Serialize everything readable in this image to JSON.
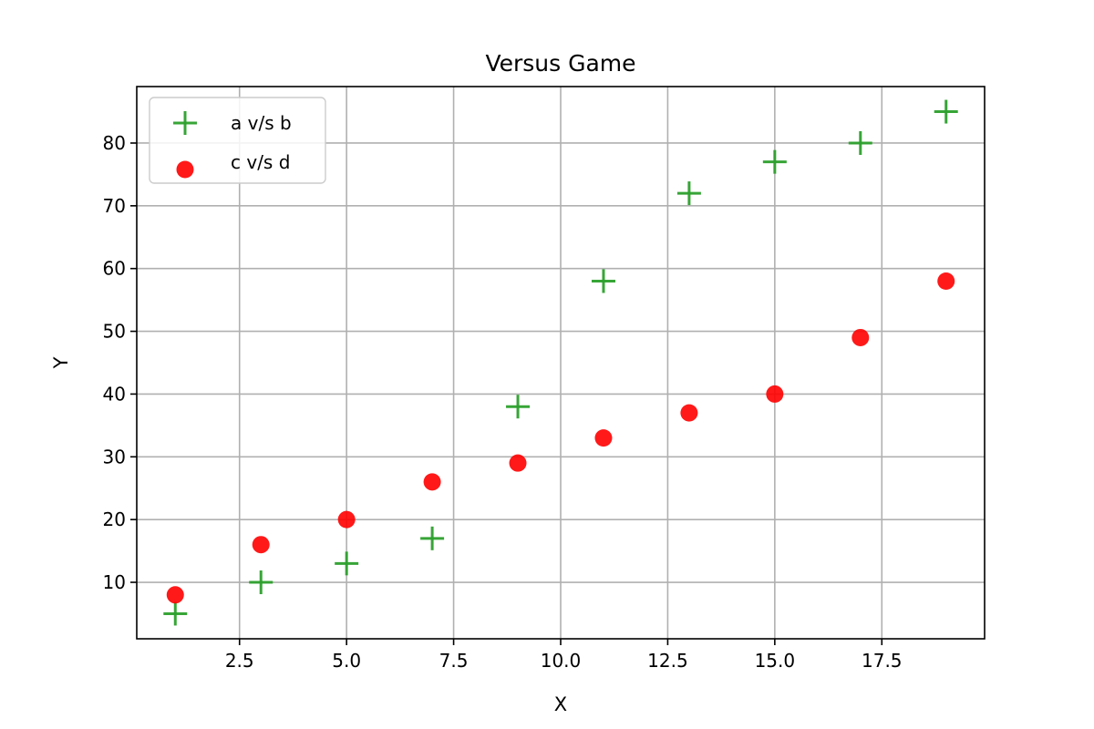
{
  "chart_data": {
    "type": "scatter",
    "title": "Versus Game",
    "xlabel": "X",
    "ylabel": "Y",
    "xlim": [
      0.1,
      19.9
    ],
    "ylim": [
      1,
      89
    ],
    "xticks": [
      2.5,
      5.0,
      7.5,
      10.0,
      12.5,
      15.0,
      17.5
    ],
    "xtick_labels": [
      "2.5",
      "5.0",
      "7.5",
      "10.0",
      "12.5",
      "15.0",
      "17.5"
    ],
    "yticks": [
      10,
      20,
      30,
      40,
      50,
      60,
      70,
      80
    ],
    "ytick_labels": [
      "10",
      "20",
      "30",
      "40",
      "50",
      "60",
      "70",
      "80"
    ],
    "grid": true,
    "legend": "top-left",
    "series": [
      {
        "name": "a v/s b",
        "marker": "plus",
        "color": "#2ca02c",
        "x": [
          1,
          3,
          5,
          7,
          9,
          11,
          13,
          15,
          17,
          19
        ],
        "y": [
          5,
          10,
          13,
          17,
          38,
          58,
          72,
          77,
          80,
          85
        ]
      },
      {
        "name": "c v/s d",
        "marker": "circle",
        "color": "#ff0000",
        "x": [
          1,
          3,
          5,
          7,
          9,
          11,
          13,
          15,
          17,
          19
        ],
        "y": [
          8,
          16,
          20,
          26,
          29,
          33,
          37,
          40,
          49,
          58
        ]
      }
    ]
  }
}
